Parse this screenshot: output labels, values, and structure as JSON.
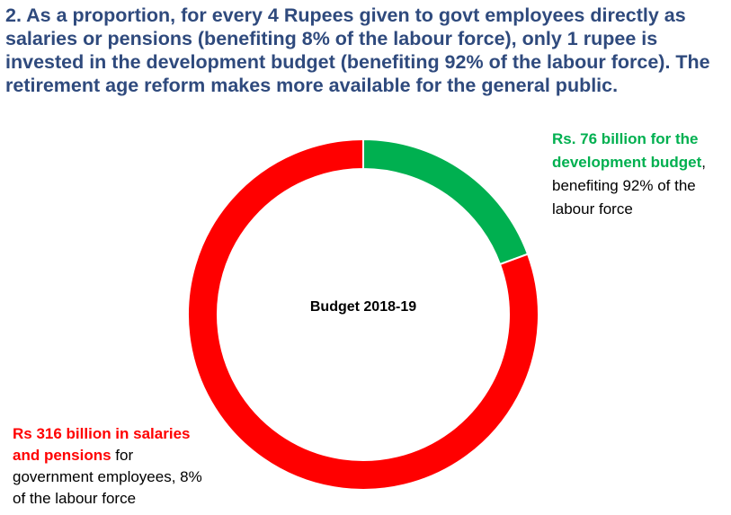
{
  "headline": "2. As a proportion, for every 4 Rupees given to govt employees directly as salaries or pensions (benefiting 8% of the labour force), only 1 rupee is invested in the development budget (benefiting 92% of the labour force). The retirement age reform makes more available for the general public.",
  "chart_data": {
    "type": "pie",
    "title": "Budget 2018-19",
    "slices": [
      {
        "label": "Rs. 76 billion for the development budget",
        "value": 76,
        "unit": "Rs. billion",
        "color": "#00B050"
      },
      {
        "label": "Rs 316 billion in salaries and pensions",
        "value": 316,
        "unit": "Rs. billion",
        "color": "#FF0000"
      }
    ],
    "hole": "donut"
  },
  "labels": {
    "development": {
      "strong": "Rs. 76 billion for the development budget",
      "rest_lines": [
        ",",
        "benefiting 92% of the labour force"
      ]
    },
    "salaries": {
      "strong": "Rs 316 billion in salaries and pensions",
      "rest": " for government employees, 8% of the labour force"
    }
  }
}
